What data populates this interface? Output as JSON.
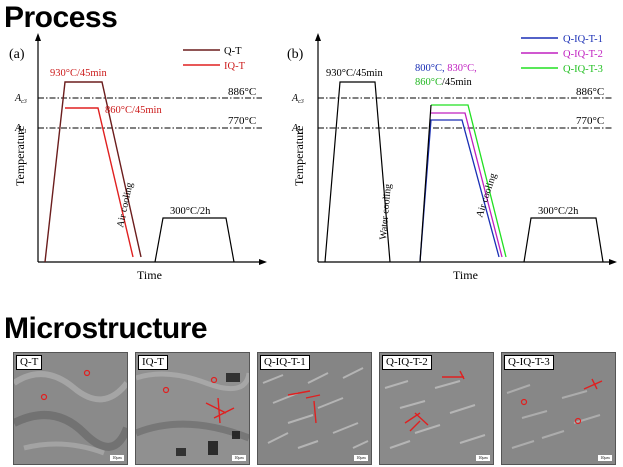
{
  "headings": {
    "process": "Process",
    "microstructure": "Microstructure"
  },
  "chart_a": {
    "panel_label": "(a)",
    "xlabel": "Time",
    "ylabel": "Temperature",
    "ac3_label": "A",
    "ac3_sub": "c3",
    "ac1_label": "A",
    "ac1_sub": "c1",
    "ac3_value": "886°C",
    "ac1_value": "770°C",
    "annotation_930": "930°C/45min",
    "annotation_860": "860°C/45min",
    "annotation_300": "300°C/2h",
    "air_cooling": "Air cooling",
    "legend": [
      {
        "name": "Q-T",
        "color": "#6b1d1d"
      },
      {
        "name": "IQ-T",
        "color": "#e02020"
      }
    ]
  },
  "chart_b": {
    "panel_label": "(b)",
    "xlabel": "Time",
    "ylabel": "Temperature",
    "ac3_label": "A",
    "ac3_sub": "c3",
    "ac1_label": "A",
    "ac1_sub": "c1",
    "ac3_value": "886°C",
    "ac1_value": "770°C",
    "annotation_930": "930°C/45min",
    "annotation_temps": [
      {
        "text": "800°C, ",
        "color": "#1a2fb5"
      },
      {
        "text": "830°C,",
        "color": "#c020c0"
      },
      {
        "text": "860°C",
        "color": "#22b822"
      },
      {
        "text": "/45min",
        "color": "#000000"
      }
    ],
    "annotation_300": "300°C/2h",
    "water_cooling": "Water cooling",
    "air_cooling": "Air cooling",
    "legend": [
      {
        "name": "Q-IQ-T-1",
        "color": "#1a2fb5"
      },
      {
        "name": "Q-IQ-T-2",
        "color": "#c020c0"
      },
      {
        "name": "Q-IQ-T-3",
        "color": "#22e022"
      }
    ]
  },
  "micro_panels": [
    {
      "label": "Q-T",
      "scale": "10μm"
    },
    {
      "label": "IQ-T",
      "scale": "10μm"
    },
    {
      "label": "Q-IQ-T-1",
      "scale": "10μm"
    },
    {
      "label": "Q-IQ-T-2",
      "scale": "10μm"
    },
    {
      "label": "Q-IQ-T-3",
      "scale": "10μm"
    }
  ]
}
